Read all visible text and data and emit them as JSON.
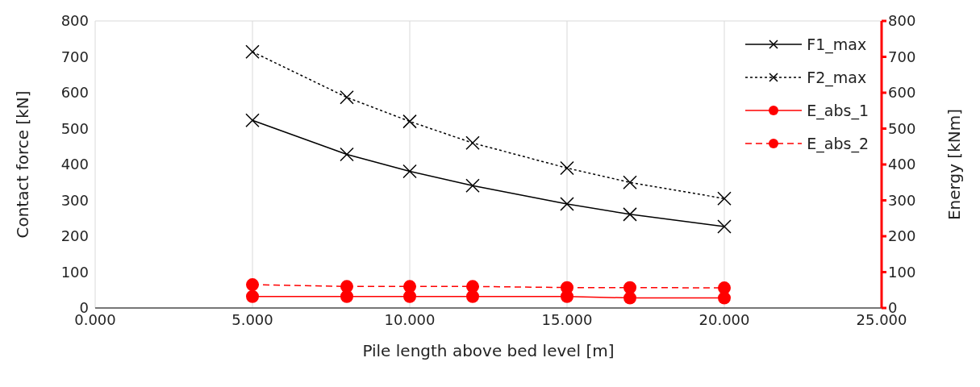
{
  "chart_data": {
    "type": "line",
    "xlabel": "Pile length above bed level [m]",
    "ylabel": "Contact force [kN]",
    "y2label": "Energy [kNm]",
    "x": [
      5,
      8,
      10,
      12,
      15,
      17,
      20
    ],
    "series": [
      {
        "name": "F1_max",
        "color": "#000000",
        "values": [
          523,
          428,
          381,
          341,
          290,
          261,
          227
        ],
        "marker": "cross",
        "line_style": "solid"
      },
      {
        "name": "F2_max",
        "color": "#000000",
        "values": [
          714,
          587,
          520,
          460,
          390,
          350,
          305
        ],
        "marker": "cross",
        "line_style": "dotted"
      },
      {
        "name": "E_abs_1",
        "color": "#ff0000",
        "values": [
          32,
          32,
          32,
          32,
          32,
          28,
          28
        ],
        "marker": "circle",
        "line_style": "solid",
        "axis": "y2"
      },
      {
        "name": "E_abs_2",
        "color": "#ff0000",
        "values": [
          65,
          60,
          60,
          60,
          57,
          57,
          56
        ],
        "marker": "circle",
        "line_style": "dashed",
        "axis": "y2"
      }
    ],
    "xlim": [
      0,
      25
    ],
    "xticks": [
      {
        "value": 0,
        "label": "0.000"
      },
      {
        "value": 5,
        "label": "5.000"
      },
      {
        "value": 10,
        "label": "10.000"
      },
      {
        "value": 15,
        "label": "15.000"
      },
      {
        "value": 20,
        "label": "20.000"
      },
      {
        "value": 25,
        "label": "25.000"
      }
    ],
    "ylim": [
      0,
      800
    ],
    "yticks": [
      0,
      100,
      200,
      300,
      400,
      500,
      600,
      700,
      800
    ],
    "y2lim": [
      0,
      800
    ],
    "y2ticks": [
      0,
      100,
      200,
      300,
      400,
      500,
      600,
      700,
      800
    ],
    "grid": true,
    "legend": "top right"
  }
}
